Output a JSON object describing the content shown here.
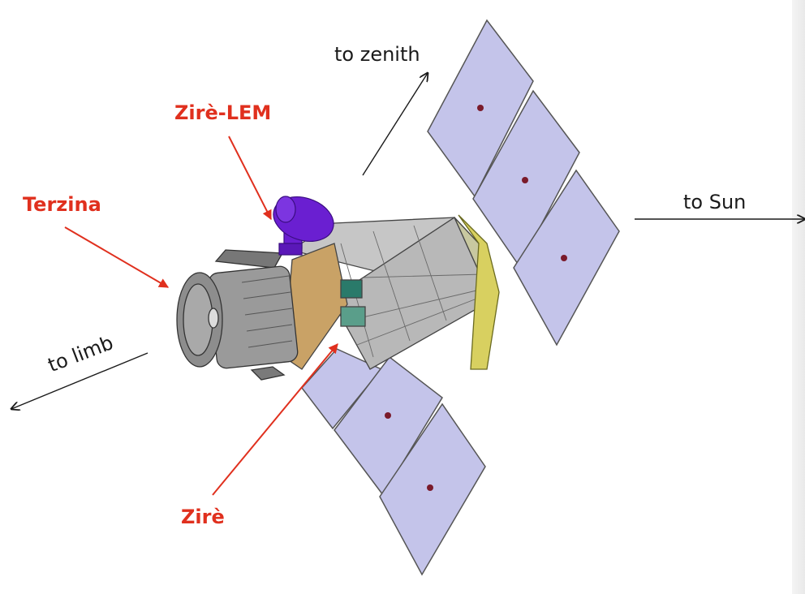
{
  "labels": {
    "zenith": "to zenith",
    "sun": "to Sun",
    "limb": "to limb",
    "zire_lem": "Zirè-LEM",
    "terzina": "Terzina",
    "zire": "Zirè"
  },
  "colors": {
    "callout": "#e0301e",
    "direction": "#1a1a1a",
    "solar_panel": "#c4c4ea",
    "antenna": "#6a1fd1",
    "bus": "#c9c9c9",
    "gold_panel": "#c9a266"
  }
}
